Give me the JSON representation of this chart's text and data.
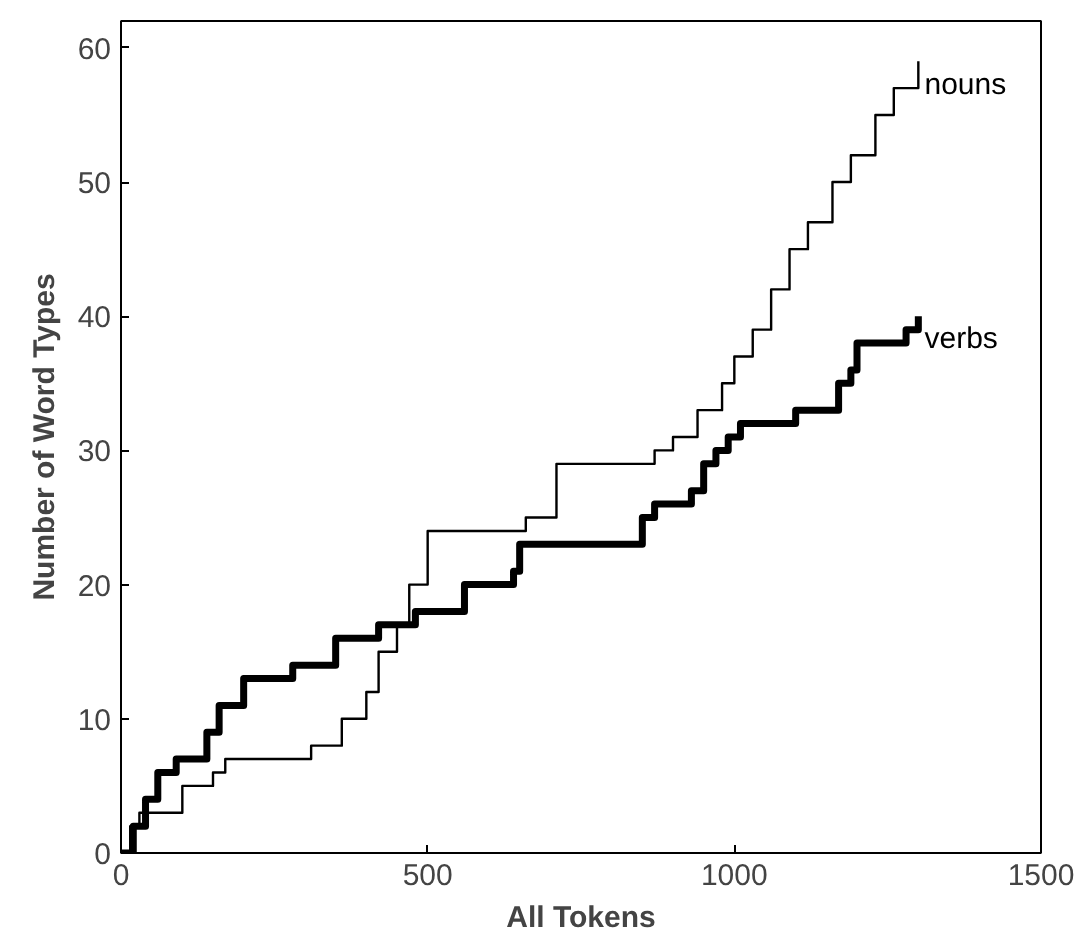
{
  "chart_data": {
    "type": "step",
    "xlabel": "All Tokens",
    "ylabel": "Number of Word Types",
    "xlim": [
      0,
      1500
    ],
    "ylim": [
      0,
      62
    ],
    "xticks": [
      0,
      500,
      1000,
      1500
    ],
    "yticks": [
      0,
      10,
      20,
      30,
      40,
      50,
      60
    ],
    "grid": false,
    "series": [
      {
        "name": "nouns",
        "color": "#000000",
        "x": [
          0,
          15,
          30,
          100,
          150,
          170,
          310,
          360,
          400,
          420,
          450,
          470,
          500,
          660,
          710,
          870,
          900,
          940,
          980,
          1000,
          1030,
          1060,
          1090,
          1120,
          1160,
          1190,
          1230,
          1260,
          1300
        ],
        "values": [
          0,
          2,
          3,
          5,
          6,
          7,
          8,
          10,
          12,
          15,
          17,
          20,
          24,
          25,
          29,
          30,
          31,
          33,
          35,
          37,
          39,
          42,
          45,
          47,
          50,
          52,
          55,
          57,
          59
        ]
      },
      {
        "name": "verbs",
        "color": "#000000",
        "x": [
          0,
          20,
          40,
          60,
          90,
          140,
          160,
          200,
          280,
          350,
          420,
          480,
          560,
          640,
          650,
          850,
          870,
          930,
          950,
          970,
          990,
          1010,
          1100,
          1170,
          1190,
          1200,
          1280,
          1300
        ],
        "values": [
          0,
          2,
          4,
          6,
          7,
          9,
          11,
          13,
          14,
          16,
          17,
          18,
          20,
          21,
          23,
          25,
          26,
          27,
          29,
          30,
          31,
          32,
          33,
          35,
          36,
          38,
          39,
          40
        ]
      }
    ]
  }
}
